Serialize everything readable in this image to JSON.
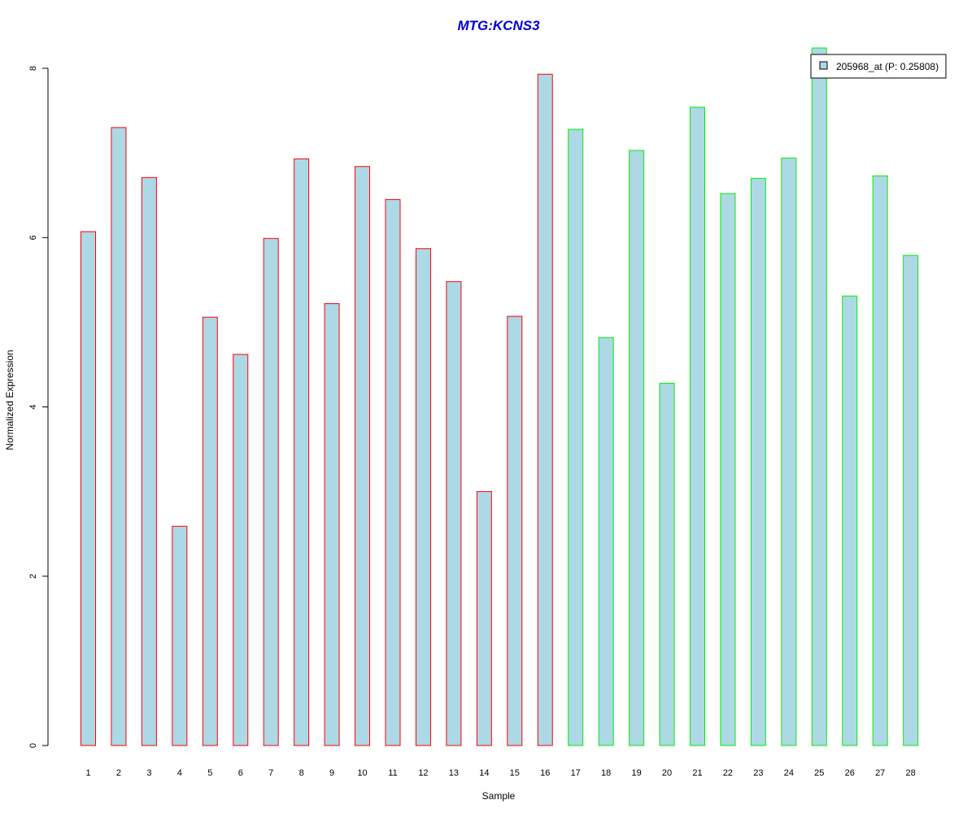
{
  "chart_data": {
    "type": "bar",
    "title": "MTG:KCNS3",
    "xlabel": "Sample",
    "ylabel": "Normalized Expression",
    "ylim": [
      0,
      8
    ],
    "yticks": [
      "0",
      "2",
      "4",
      "6",
      "8"
    ],
    "categories": [
      "1",
      "2",
      "3",
      "4",
      "5",
      "6",
      "7",
      "8",
      "9",
      "10",
      "11",
      "12",
      "13",
      "14",
      "15",
      "16",
      "17",
      "18",
      "19",
      "20",
      "21",
      "22",
      "23",
      "24",
      "25",
      "26",
      "27",
      "28"
    ],
    "series": [
      {
        "name": "205968_at (P: 0.25808)",
        "values": [
          6.07,
          7.3,
          6.71,
          2.59,
          5.06,
          4.62,
          5.99,
          6.93,
          5.22,
          6.84,
          6.45,
          5.87,
          5.48,
          3.0,
          5.07,
          7.93,
          7.28,
          4.82,
          7.03,
          4.28,
          7.54,
          6.52,
          6.7,
          6.94,
          8.24,
          5.31,
          6.73,
          5.79
        ]
      }
    ],
    "groups": [
      {
        "samples": [
          1,
          16
        ],
        "outline_color": "#ff0000"
      },
      {
        "samples": [
          17,
          28
        ],
        "outline_color": "#00ee00"
      }
    ],
    "bar_fill": "#add8e6",
    "legend_position": "top-right",
    "grid": false
  }
}
